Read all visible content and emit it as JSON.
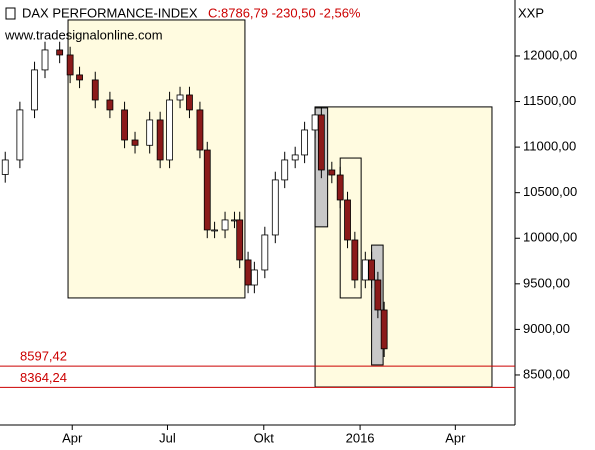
{
  "chart_data": {
    "type": "candlestick",
    "title": "DAX PERFORMANCE-INDEX",
    "subtitle": "C:8786,79 -230,50 -2,56%",
    "source": "www.tradesignalonline.com",
    "axis_label": "XXP",
    "x": [
      26,
      40,
      54,
      64,
      78,
      88,
      97,
      112,
      126,
      140,
      150,
      164,
      174,
      183,
      193,
      202,
      212,
      219,
      226,
      236,
      245,
      250,
      258,
      264,
      274,
      284,
      293,
      303,
      312,
      322,
      328,
      338,
      346,
      353,
      360,
      370,
      376,
      382,
      388
    ],
    "open": [
      10700,
      10859,
      11408,
      11847,
      12066,
      12011,
      11792,
      11737,
      11517,
      11408,
      11078,
      11020,
      11298,
      10859,
      11517,
      11572,
      11408,
      10968,
      10091,
      10091,
      10201,
      10201,
      9762,
      9487,
      9652,
      10036,
      10640,
      10859,
      10914,
      11188,
      11353,
      10749,
      10694,
      10420,
      9981,
      9542,
      9762,
      9542,
      9213
    ],
    "high": [
      10949,
      11498,
      11937,
      12156,
      12156,
      12101,
      11882,
      11827,
      11607,
      11498,
      11168,
      11388,
      11388,
      11607,
      11662,
      11662,
      11498,
      11058,
      10181,
      10291,
      10291,
      10291,
      9852,
      9742,
      10126,
      10730,
      10949,
      11004,
      11278,
      11443,
      11443,
      10839,
      10784,
      10510,
      10071,
      9852,
      9852,
      9632,
      9303
    ],
    "low": [
      10610,
      10769,
      11318,
      11757,
      11921,
      11702,
      11647,
      11427,
      11318,
      10988,
      10930,
      10930,
      10769,
      10769,
      11427,
      11318,
      10878,
      10001,
      10001,
      10001,
      10111,
      9672,
      9397,
      9397,
      9562,
      9946,
      10550,
      10769,
      10824,
      11098,
      10659,
      10604,
      10330,
      9891,
      9452,
      9452,
      9452,
      9123,
      8697
    ],
    "close": [
      10859,
      11408,
      11847,
      12066,
      12011,
      11792,
      11737,
      11517,
      11408,
      11078,
      11020,
      11298,
      10859,
      11517,
      11572,
      11408,
      10968,
      10091,
      10091,
      10201,
      10201,
      9762,
      9487,
      9652,
      10036,
      10640,
      10859,
      10914,
      11188,
      11353,
      10749,
      10694,
      10420,
      9981,
      9542,
      9762,
      9542,
      9213,
      8786.79
    ],
    "up_color": "#ffffff",
    "down_color": "#8b1a1a",
    "xlim": [
      21,
      513
    ],
    "xticks": [
      {
        "value": 90,
        "label": "Apr"
      },
      {
        "value": 181,
        "label": "Jul"
      },
      {
        "value": 273,
        "label": "Okt"
      },
      {
        "value": 365,
        "label": "2016"
      },
      {
        "value": 456,
        "label": "Apr"
      }
    ],
    "ylim": [
      7951,
      12614
    ],
    "yticks": [
      {
        "value": 8500,
        "label": "8500,00"
      },
      {
        "value": 9000,
        "label": "9000,00"
      },
      {
        "value": 9500,
        "label": "9500,00"
      },
      {
        "value": 10000,
        "label": "10000,00"
      },
      {
        "value": 10500,
        "label": "10500,00"
      },
      {
        "value": 11000,
        "label": "11000,00"
      },
      {
        "value": 11500,
        "label": "11500,00"
      },
      {
        "value": 12000,
        "label": "12000,00"
      }
    ],
    "hlines": [
      {
        "value": 8597.42,
        "label": "8597,42"
      },
      {
        "value": 8364.24,
        "label": "8364,24"
      }
    ],
    "hline_color": "#cc0000",
    "boxes": [
      {
        "x": [
          86,
          255
        ],
        "y": [
          12395,
          9345
        ],
        "color": "#fffbe0"
      },
      {
        "x": [
          322,
          491
        ],
        "y": [
          11441,
          8368
        ],
        "color": "#fffbe0"
      },
      {
        "x": [
          322,
          334
        ],
        "y": [
          11430,
          10125
        ],
        "color": "#c8c8c8"
      },
      {
        "x": [
          346,
          366
        ],
        "y": [
          10880,
          9345
        ],
        "color": "#fffbe0"
      },
      {
        "x": [
          376,
          387
        ],
        "y": [
          9925,
          8610
        ],
        "color": "#c8c8c8"
      }
    ]
  }
}
